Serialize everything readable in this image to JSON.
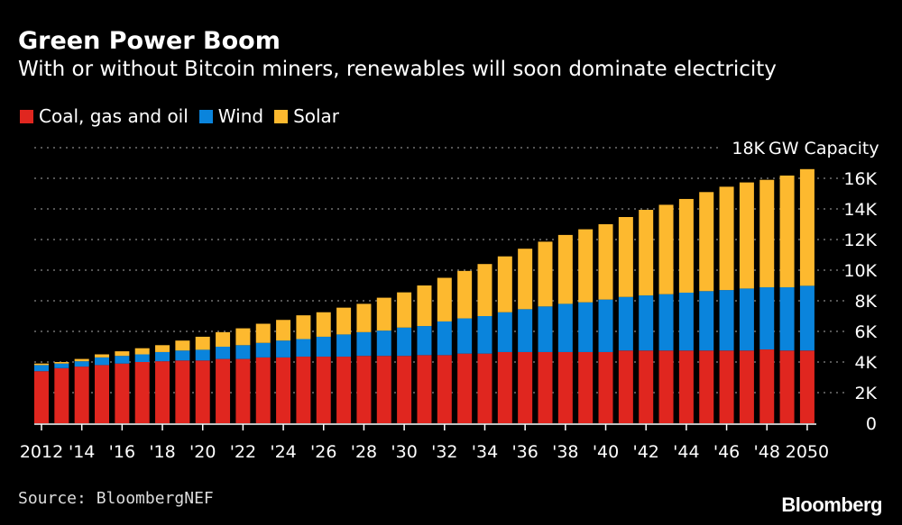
{
  "chart_data": {
    "type": "bar",
    "stacked": true,
    "title": "Green Power Boom",
    "subtitle": "With or without Bitcoin miners, renewables will soon dominate electricity",
    "ylabel": "GW Capacity",
    "ylim": [
      0,
      18000
    ],
    "yticks": [
      0,
      2000,
      4000,
      6000,
      8000,
      10000,
      12000,
      14000,
      16000,
      18000
    ],
    "ytick_labels": [
      "0",
      "2K",
      "4K",
      "6K",
      "8K",
      "10K",
      "12K",
      "14K",
      "16K",
      "18K"
    ],
    "grid": true,
    "legend_position": "top-left",
    "categories": [
      2012,
      2013,
      2014,
      2015,
      2016,
      2017,
      2018,
      2019,
      2020,
      2021,
      2022,
      2023,
      2024,
      2025,
      2026,
      2027,
      2028,
      2029,
      2030,
      2031,
      2032,
      2033,
      2034,
      2035,
      2036,
      2037,
      2038,
      2039,
      2040,
      2041,
      2042,
      2043,
      2044,
      2045,
      2046,
      2047,
      2048,
      2049,
      2050
    ],
    "xtick_labels": [
      {
        "year": 2012,
        "label": "2012"
      },
      {
        "year": 2014,
        "label": "'14"
      },
      {
        "year": 2016,
        "label": "'16"
      },
      {
        "year": 2018,
        "label": "'18"
      },
      {
        "year": 2020,
        "label": "'20"
      },
      {
        "year": 2022,
        "label": "'22"
      },
      {
        "year": 2024,
        "label": "'24"
      },
      {
        "year": 2026,
        "label": "'26"
      },
      {
        "year": 2028,
        "label": "'28"
      },
      {
        "year": 2030,
        "label": "'30"
      },
      {
        "year": 2032,
        "label": "'32"
      },
      {
        "year": 2034,
        "label": "'34"
      },
      {
        "year": 2036,
        "label": "'36"
      },
      {
        "year": 2038,
        "label": "'38"
      },
      {
        "year": 2040,
        "label": "'40"
      },
      {
        "year": 2042,
        "label": "'42"
      },
      {
        "year": 2044,
        "label": "'44"
      },
      {
        "year": 2046,
        "label": "'46"
      },
      {
        "year": 2048,
        "label": "'48"
      },
      {
        "year": 2050,
        "label": "2050"
      }
    ],
    "series": [
      {
        "name": "Coal, gas and oil",
        "color": "#e0261f",
        "values": [
          3400,
          3600,
          3700,
          3800,
          3900,
          4000,
          4050,
          4100,
          4100,
          4200,
          4200,
          4300,
          4300,
          4350,
          4350,
          4350,
          4400,
          4400,
          4400,
          4450,
          4450,
          4550,
          4550,
          4650,
          4650,
          4650,
          4650,
          4650,
          4650,
          4750,
          4750,
          4750,
          4750,
          4750,
          4750,
          4750,
          4820,
          4750,
          4750
        ]
      },
      {
        "name": "Wind",
        "color": "#0a84dc",
        "values": [
          400,
          300,
          350,
          500,
          500,
          500,
          600,
          650,
          700,
          800,
          900,
          950,
          1100,
          1150,
          1300,
          1450,
          1550,
          1650,
          1850,
          1900,
          2200,
          2300,
          2450,
          2600,
          2800,
          2980,
          3150,
          3250,
          3430,
          3500,
          3600,
          3680,
          3780,
          3880,
          3950,
          4050,
          4060,
          4130,
          4230
        ]
      },
      {
        "name": "Solar",
        "color": "#fdb92f",
        "values": [
          100,
          100,
          150,
          200,
          300,
          400,
          450,
          650,
          850,
          950,
          1100,
          1250,
          1350,
          1550,
          1600,
          1750,
          1850,
          2150,
          2300,
          2650,
          2850,
          3100,
          3400,
          3650,
          3950,
          4230,
          4500,
          4770,
          4920,
          5220,
          5590,
          5840,
          6120,
          6470,
          6750,
          6930,
          7020,
          7300,
          7620
        ]
      }
    ]
  },
  "footer": {
    "source": "Source: BloombergNEF",
    "logo": "Bloomberg"
  }
}
